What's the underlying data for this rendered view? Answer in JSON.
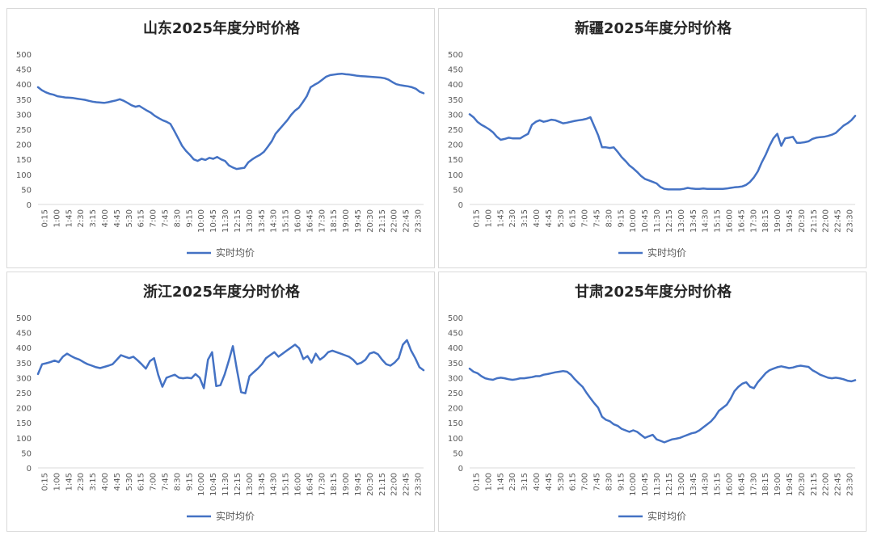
{
  "charts": [
    {
      "title": "山东2025年度分时价格",
      "legend": "实时均价",
      "color": "#4472c4",
      "ymin": 0,
      "ymax": 500,
      "ystep": 50,
      "yticks": [
        "0",
        "50",
        "100",
        "150",
        "200",
        "250",
        "300",
        "350",
        "400",
        "450",
        "500"
      ],
      "xticks": [
        "0:15",
        "1:00",
        "1:45",
        "2:30",
        "3:15",
        "4:00",
        "4:45",
        "5:30",
        "6:15",
        "7:00",
        "7:45",
        "8:30",
        "9:15",
        "10:00",
        "10:45",
        "11:30",
        "12:15",
        "13:00",
        "13:45",
        "14:30",
        "15:15",
        "16:00",
        "16:45",
        "17:30",
        "18:15",
        "19:00",
        "19:45",
        "20:30",
        "21:15",
        "22:00",
        "22:45",
        "23:30"
      ],
      "values": [
        390,
        380,
        373,
        368,
        365,
        360,
        358,
        356,
        355,
        354,
        352,
        350,
        348,
        345,
        342,
        340,
        339,
        338,
        340,
        343,
        346,
        350,
        345,
        338,
        330,
        325,
        328,
        320,
        312,
        305,
        295,
        287,
        280,
        275,
        268,
        245,
        220,
        195,
        178,
        165,
        150,
        145,
        152,
        148,
        155,
        152,
        158,
        150,
        145,
        130,
        123,
        118,
        120,
        122,
        140,
        150,
        158,
        165,
        175,
        192,
        210,
        235,
        250,
        265,
        280,
        298,
        312,
        322,
        340,
        360,
        390,
        398,
        405,
        415,
        425,
        430,
        432,
        434,
        435,
        433,
        432,
        430,
        428,
        427,
        426,
        425,
        424,
        423,
        422,
        420,
        415,
        407,
        400,
        397,
        395,
        393,
        390,
        385,
        375,
        370
      ],
      "chart_data": {
        "type": "line",
        "title": "山东2025年度分时价格",
        "xlabel": "",
        "ylabel": "",
        "ylim": [
          0,
          500
        ],
        "grid": false,
        "legend_position": "bottom",
        "series": [
          {
            "name": "实时均价",
            "color": "#4472c4"
          }
        ]
      }
    },
    {
      "title": "新疆2025年度分时价格",
      "legend": "实时均价",
      "color": "#4472c4",
      "ymin": 0,
      "ymax": 500,
      "ystep": 50,
      "yticks": [
        "0",
        "50",
        "100",
        "150",
        "200",
        "250",
        "300",
        "350",
        "400",
        "450",
        "500"
      ],
      "xticks": [
        "0:15",
        "1:00",
        "1:45",
        "2:30",
        "3:15",
        "4:00",
        "4:45",
        "5:30",
        "6:15",
        "7:00",
        "7:45",
        "8:30",
        "9:15",
        "10:00",
        "10:45",
        "11:30",
        "12:15",
        "13:00",
        "13:45",
        "14:30",
        "15:15",
        "16:00",
        "16:45",
        "17:30",
        "18:15",
        "19:00",
        "19:45",
        "20:30",
        "21:15",
        "22:00",
        "22:45",
        "23:30"
      ],
      "values": [
        300,
        290,
        275,
        265,
        258,
        250,
        240,
        225,
        215,
        218,
        222,
        220,
        220,
        220,
        228,
        235,
        265,
        275,
        280,
        275,
        278,
        282,
        280,
        275,
        270,
        272,
        275,
        278,
        280,
        282,
        285,
        290,
        260,
        230,
        190,
        190,
        188,
        190,
        175,
        158,
        145,
        130,
        120,
        108,
        95,
        85,
        80,
        75,
        70,
        58,
        52,
        50,
        50,
        50,
        50,
        52,
        55,
        53,
        52,
        52,
        53,
        52,
        52,
        52,
        52,
        52,
        53,
        55,
        57,
        58,
        60,
        65,
        75,
        90,
        110,
        140,
        165,
        195,
        220,
        235,
        195,
        220,
        222,
        225,
        205,
        205,
        207,
        210,
        218,
        222,
        224,
        225,
        228,
        232,
        238,
        250,
        262,
        270,
        280,
        295
      ],
      "chart_data": {
        "type": "line",
        "title": "新疆2025年度分时价格",
        "xlabel": "",
        "ylabel": "",
        "ylim": [
          0,
          500
        ],
        "grid": false,
        "legend_position": "bottom",
        "series": [
          {
            "name": "实时均价",
            "color": "#4472c4"
          }
        ]
      }
    },
    {
      "title": "浙江2025年度分时价格",
      "legend": "实时均价",
      "color": "#4472c4",
      "ymin": 0,
      "ymax": 500,
      "ystep": 50,
      "yticks": [
        "0",
        "50",
        "100",
        "150",
        "200",
        "250",
        "300",
        "350",
        "400",
        "450",
        "500"
      ],
      "xticks": [
        "0:15",
        "1:00",
        "1:45",
        "2:30",
        "3:15",
        "4:00",
        "4:45",
        "5:30",
        "6:15",
        "7:00",
        "7:45",
        "8:30",
        "9:15",
        "10:00",
        "10:45",
        "11:30",
        "12:15",
        "13:00",
        "13:45",
        "14:30",
        "15:15",
        "16:00",
        "16:45",
        "17:30",
        "18:15",
        "19:00",
        "19:45",
        "20:30",
        "21:15",
        "22:00",
        "22:45",
        "23:30"
      ],
      "values": [
        312,
        345,
        348,
        352,
        357,
        352,
        370,
        380,
        372,
        365,
        360,
        352,
        345,
        340,
        335,
        332,
        336,
        340,
        345,
        360,
        375,
        370,
        365,
        370,
        358,
        345,
        330,
        355,
        365,
        310,
        270,
        300,
        305,
        310,
        300,
        298,
        300,
        298,
        312,
        300,
        265,
        360,
        385,
        272,
        275,
        310,
        355,
        405,
        325,
        252,
        248,
        305,
        318,
        330,
        345,
        365,
        375,
        385,
        370,
        380,
        390,
        400,
        410,
        398,
        362,
        372,
        350,
        380,
        360,
        370,
        385,
        390,
        385,
        380,
        375,
        370,
        360,
        345,
        350,
        360,
        380,
        385,
        378,
        360,
        345,
        340,
        350,
        365,
        410,
        425,
        390,
        365,
        335,
        325
      ],
      "chart_data": {
        "type": "line",
        "title": "浙江2025年度分时价格",
        "xlabel": "",
        "ylabel": "",
        "ylim": [
          0,
          500
        ],
        "grid": false,
        "legend_position": "bottom",
        "series": [
          {
            "name": "实时均价",
            "color": "#4472c4"
          }
        ]
      }
    },
    {
      "title": "甘肃2025年度分时价格",
      "legend": "实时均价",
      "color": "#4472c4",
      "ymin": 0,
      "ymax": 500,
      "ystep": 50,
      "yticks": [
        "0",
        "50",
        "100",
        "150",
        "200",
        "250",
        "300",
        "350",
        "400",
        "450",
        "500"
      ],
      "xticks": [
        "0:15",
        "1:00",
        "1:45",
        "2:30",
        "3:15",
        "4:00",
        "4:45",
        "5:30",
        "6:15",
        "7:00",
        "7:45",
        "8:30",
        "9:15",
        "10:00",
        "10:45",
        "11:30",
        "12:15",
        "13:00",
        "13:45",
        "14:30",
        "15:15",
        "16:00",
        "16:45",
        "17:30",
        "18:15",
        "19:00",
        "19:45",
        "20:30",
        "21:15",
        "22:00",
        "22:45",
        "23:30"
      ],
      "values": [
        330,
        320,
        315,
        305,
        298,
        295,
        293,
        298,
        300,
        298,
        295,
        293,
        295,
        298,
        298,
        300,
        302,
        305,
        305,
        310,
        312,
        315,
        318,
        320,
        322,
        320,
        310,
        295,
        282,
        270,
        250,
        232,
        215,
        200,
        170,
        160,
        155,
        145,
        140,
        130,
        125,
        120,
        125,
        120,
        110,
        100,
        105,
        110,
        95,
        90,
        85,
        90,
        95,
        97,
        100,
        105,
        110,
        115,
        118,
        125,
        135,
        145,
        155,
        170,
        190,
        200,
        210,
        230,
        255,
        270,
        280,
        285,
        270,
        265,
        285,
        300,
        315,
        325,
        330,
        335,
        338,
        335,
        332,
        334,
        338,
        340,
        338,
        336,
        325,
        318,
        310,
        305,
        300,
        298,
        300,
        298,
        295,
        290,
        288,
        292
      ],
      "chart_data": {
        "type": "line",
        "title": "甘肃2025年度分时价格",
        "xlabel": "",
        "ylabel": "",
        "ylim": [
          0,
          500
        ],
        "grid": false,
        "legend_position": "bottom",
        "series": [
          {
            "name": "实时均价",
            "color": "#4472c4"
          }
        ]
      }
    }
  ]
}
